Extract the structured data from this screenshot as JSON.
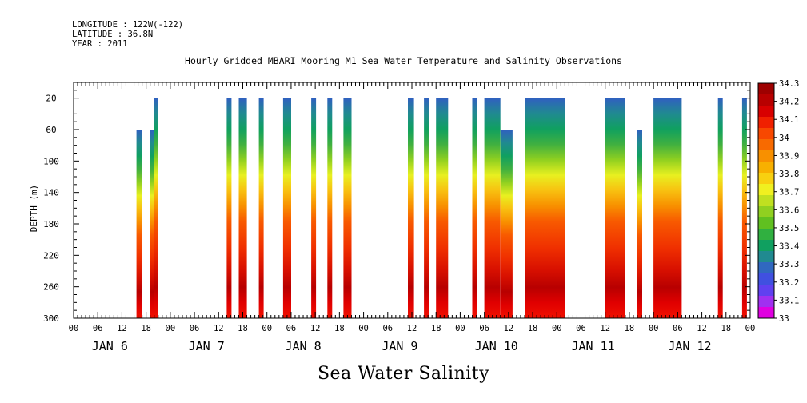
{
  "header": {
    "longitude": "LONGITUDE : 122W(-122)",
    "latitude": "LATITUDE : 36.8N",
    "year": "YEAR : 2011"
  },
  "chart_data": {
    "type": "heatmap",
    "title": "Hourly Gridded MBARI Mooring M1 Sea Water Temperature and Salinity Observations",
    "bottom_label": "Sea Water Salinity",
    "ylabel": "DEPTH (m)",
    "ylim": [
      300,
      0
    ],
    "y_ticks": [
      20,
      60,
      100,
      140,
      180,
      220,
      260,
      300
    ],
    "x_hours_range": [
      0,
      168
    ],
    "x_hour_ticks": [
      "00",
      "06",
      "12",
      "18",
      "00",
      "06",
      "12",
      "18",
      "00",
      "06",
      "12",
      "18",
      "00",
      "06",
      "12",
      "18",
      "00",
      "06",
      "12",
      "18",
      "00",
      "06",
      "12",
      "18",
      "00",
      "06",
      "12",
      "18",
      "00"
    ],
    "day_labels": [
      "JAN 6",
      "JAN 7",
      "JAN 8",
      "JAN 9",
      "JAN 10",
      "JAN 11",
      "JAN 12"
    ],
    "colorbar": {
      "levels": [
        33,
        33.1,
        33.2,
        33.3,
        33.4,
        33.5,
        33.6,
        33.7,
        33.8,
        33.9,
        34,
        34.1,
        34.2,
        34.3
      ],
      "colors": [
        "#e000e0",
        "#a030f0",
        "#6040f0",
        "#4050e0",
        "#3068c0",
        "#208a90",
        "#10a060",
        "#30b040",
        "#60c020",
        "#90d020",
        "#c0e020",
        "#f0f020",
        "#f8d010",
        "#f8b000",
        "#f89000",
        "#f86a00",
        "#f84800",
        "#f02000",
        "#d80000",
        "#b80000",
        "#9e0000"
      ]
    },
    "segments": [
      {
        "start_hour": 15.6,
        "end_hour": 17.0,
        "top_depth": 60
      },
      {
        "start_hour": 19.0,
        "end_hour": 20.0,
        "top_depth": 60
      },
      {
        "start_hour": 20.0,
        "end_hour": 21.0,
        "top_depth": 20
      },
      {
        "start_hour": 38.0,
        "end_hour": 39.2,
        "top_depth": 20
      },
      {
        "start_hour": 41.0,
        "end_hour": 43.0,
        "top_depth": 20
      },
      {
        "start_hour": 46.0,
        "end_hour": 47.2,
        "top_depth": 20
      },
      {
        "start_hour": 52.0,
        "end_hour": 54.0,
        "top_depth": 20
      },
      {
        "start_hour": 59.0,
        "end_hour": 60.2,
        "top_depth": 20
      },
      {
        "start_hour": 63.0,
        "end_hour": 64.2,
        "top_depth": 20
      },
      {
        "start_hour": 67.0,
        "end_hour": 69.0,
        "top_depth": 20
      },
      {
        "start_hour": 83.0,
        "end_hour": 84.5,
        "top_depth": 20
      },
      {
        "start_hour": 87.0,
        "end_hour": 88.2,
        "top_depth": 20
      },
      {
        "start_hour": 90.0,
        "end_hour": 93.0,
        "top_depth": 20
      },
      {
        "start_hour": 99.0,
        "end_hour": 100.2,
        "top_depth": 20
      },
      {
        "start_hour": 102.0,
        "end_hour": 106.0,
        "top_depth": 20
      },
      {
        "start_hour": 106.0,
        "end_hour": 109.0,
        "top_depth": 60
      },
      {
        "start_hour": 112.0,
        "end_hour": 122.0,
        "top_depth": 20
      },
      {
        "start_hour": 132.0,
        "end_hour": 137.0,
        "top_depth": 20
      },
      {
        "start_hour": 140.0,
        "end_hour": 141.2,
        "top_depth": 60
      },
      {
        "start_hour": 144.0,
        "end_hour": 151.0,
        "top_depth": 20
      },
      {
        "start_hour": 160.0,
        "end_hour": 161.2,
        "top_depth": 20
      },
      {
        "start_hour": 166.0,
        "end_hour": 167.2,
        "top_depth": 20
      }
    ]
  }
}
